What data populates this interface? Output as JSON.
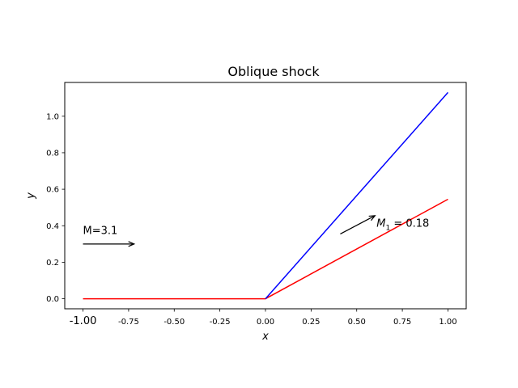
{
  "chart_data": {
    "type": "line",
    "title": "Oblique shock",
    "xlabel": "x",
    "ylabel": "y",
    "xlim": [
      -1.1,
      1.1
    ],
    "ylim": [
      -0.055,
      1.185
    ],
    "x_ticks": [
      {
        "value": -1.0,
        "label": "-1.00",
        "emphasis": true
      },
      {
        "value": -0.75,
        "label": "-0.75"
      },
      {
        "value": -0.5,
        "label": "-0.50"
      },
      {
        "value": -0.25,
        "label": "-0.25"
      },
      {
        "value": 0.0,
        "label": "0.00"
      },
      {
        "value": 0.25,
        "label": "0.25"
      },
      {
        "value": 0.5,
        "label": "0.50"
      },
      {
        "value": 0.75,
        "label": "0.75"
      },
      {
        "value": 1.0,
        "label": "1.00"
      }
    ],
    "y_ticks": [
      {
        "value": 0.0,
        "label": "0.0"
      },
      {
        "value": 0.2,
        "label": "0.2"
      },
      {
        "value": 0.4,
        "label": "0.4"
      },
      {
        "value": 0.6,
        "label": "0.6"
      },
      {
        "value": 0.8,
        "label": "0.8"
      },
      {
        "value": 1.0,
        "label": "1.0"
      }
    ],
    "grid": false,
    "series": [
      {
        "color": "#ff0000",
        "x": [
          -1.0,
          0.0,
          1.0
        ],
        "y": [
          0.0,
          0.0,
          0.545
        ]
      },
      {
        "color": "#0000ff",
        "x": [
          0.0,
          1.0
        ],
        "y": [
          0.0,
          1.13
        ]
      }
    ],
    "annotations": [
      {
        "text": "M=3.1",
        "x": -1.0,
        "y": 0.35,
        "arrow_from": [
          -1.0,
          0.3
        ],
        "arrow_to": [
          -0.72,
          0.3
        ]
      },
      {
        "text_main": "M",
        "text_sub": "1",
        "text_rest": " = 0.18",
        "x": 0.6,
        "y": 0.4,
        "arrow_from": [
          0.41,
          0.355
        ],
        "arrow_to": [
          0.6,
          0.455
        ]
      }
    ]
  }
}
